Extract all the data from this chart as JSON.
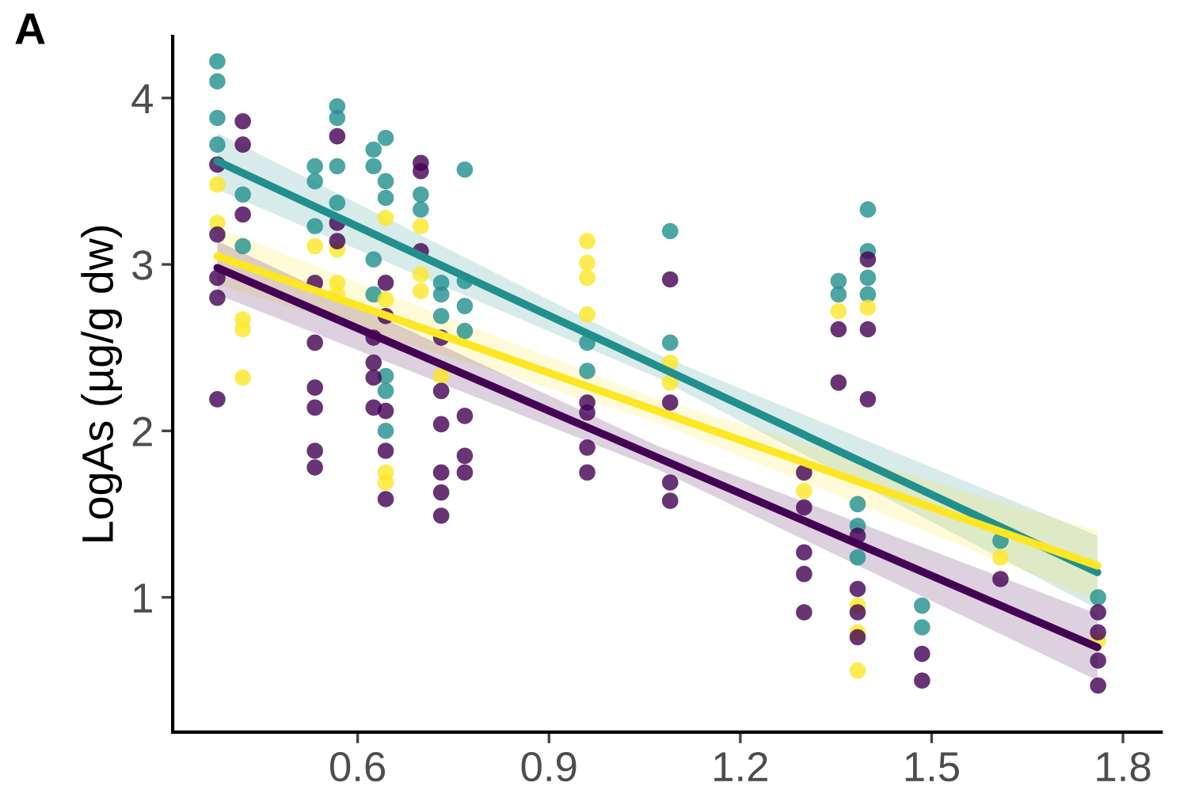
{
  "chart_data": {
    "type": "scatter",
    "ylabel": "LogAs (µg/g dw)",
    "annotations": [
      "A"
    ],
    "xlim": [
      0.31,
      1.86
    ],
    "ylim": [
      0.19,
      4.37
    ],
    "xticks": [
      0.6,
      0.9,
      1.2,
      1.5,
      1.8
    ],
    "yticks": [
      1,
      2,
      3,
      4
    ],
    "grid": false,
    "marker": "circle",
    "series": [
      {
        "color": "#21908c",
        "x": [
          0.38,
          0.38,
          0.38,
          0.38,
          0.42,
          0.42,
          0.533,
          0.533,
          0.533,
          0.568,
          0.568,
          0.568,
          0.568,
          0.625,
          0.625,
          0.625,
          0.625,
          0.644,
          0.644,
          0.644,
          0.644,
          0.644,
          0.644,
          0.699,
          0.699,
          0.731,
          0.731,
          0.731,
          0.768,
          0.768,
          0.768,
          0.768,
          0.96,
          0.96,
          1.09,
          1.09,
          1.354,
          1.354,
          1.4,
          1.4,
          1.4,
          1.4,
          1.384,
          1.384,
          1.384,
          1.485,
          1.485,
          1.608,
          1.761
        ],
        "values": [
          4.22,
          4.1,
          3.88,
          3.72,
          3.42,
          3.11,
          3.59,
          3.5,
          3.23,
          3.95,
          3.88,
          3.59,
          3.37,
          3.69,
          3.59,
          3.03,
          2.82,
          3.76,
          3.5,
          3.4,
          2.33,
          2.24,
          2.0,
          3.42,
          3.33,
          2.89,
          2.82,
          2.69,
          3.57,
          2.9,
          2.75,
          2.6,
          2.53,
          2.36,
          3.2,
          2.53,
          2.9,
          2.82,
          3.33,
          3.08,
          2.92,
          2.82,
          1.56,
          1.43,
          1.24,
          0.95,
          0.82,
          1.34,
          1.0
        ]
      },
      {
        "color": "#fde725",
        "x": [
          0.38,
          0.38,
          0.42,
          0.42,
          0.42,
          0.533,
          0.568,
          0.568,
          0.568,
          0.644,
          0.644,
          0.644,
          0.644,
          0.699,
          0.699,
          0.699,
          0.731,
          0.96,
          0.96,
          0.96,
          0.96,
          1.09,
          1.09,
          1.3,
          1.354,
          1.4,
          1.384,
          1.384,
          1.384,
          1.608,
          1.761
        ],
        "values": [
          3.48,
          3.25,
          2.67,
          2.61,
          2.32,
          3.11,
          3.09,
          2.89,
          2.82,
          3.28,
          2.79,
          1.75,
          1.69,
          3.23,
          2.94,
          2.84,
          2.33,
          3.14,
          3.01,
          2.92,
          2.7,
          2.41,
          2.29,
          1.64,
          2.72,
          2.74,
          0.95,
          0.79,
          0.56,
          1.24,
          0.74
        ]
      },
      {
        "color": "#440154",
        "x": [
          0.38,
          0.38,
          0.38,
          0.38,
          0.38,
          0.42,
          0.42,
          0.42,
          0.533,
          0.533,
          0.533,
          0.533,
          0.533,
          0.533,
          0.568,
          0.568,
          0.568,
          0.625,
          0.625,
          0.625,
          0.625,
          0.644,
          0.644,
          0.644,
          0.644,
          0.644,
          0.699,
          0.699,
          0.699,
          0.731,
          0.731,
          0.731,
          0.731,
          0.731,
          0.731,
          0.768,
          0.768,
          0.768,
          0.96,
          0.96,
          0.96,
          0.96,
          1.09,
          1.09,
          1.09,
          1.09,
          1.3,
          1.3,
          1.3,
          1.3,
          1.3,
          1.354,
          1.354,
          1.4,
          1.4,
          1.4,
          1.384,
          1.384,
          1.384,
          1.384,
          1.485,
          1.485,
          1.608,
          1.761,
          1.761,
          1.761,
          1.761
        ],
        "values": [
          3.6,
          3.18,
          2.92,
          2.8,
          2.19,
          3.86,
          3.72,
          3.3,
          2.89,
          2.53,
          2.26,
          2.14,
          1.88,
          1.78,
          3.77,
          3.25,
          3.14,
          2.56,
          2.41,
          2.32,
          2.14,
          2.89,
          2.69,
          2.12,
          1.88,
          1.59,
          3.61,
          3.56,
          3.08,
          2.56,
          2.24,
          2.04,
          1.75,
          1.63,
          1.49,
          2.09,
          1.85,
          1.75,
          2.17,
          2.11,
          1.9,
          1.75,
          2.91,
          2.17,
          1.69,
          1.58,
          1.75,
          1.54,
          1.27,
          1.14,
          0.91,
          2.61,
          2.29,
          3.03,
          2.61,
          2.19,
          1.37,
          1.05,
          0.91,
          0.76,
          0.66,
          0.5,
          1.11,
          0.91,
          0.79,
          0.62,
          0.47
        ]
      },
      {
        "type": "line",
        "marker": "none",
        "color": "#21908c",
        "x": [
          0.38,
          1.07,
          1.76
        ],
        "values": [
          3.62,
          2.39,
          1.15
        ],
        "lower": [
          3.45,
          2.32,
          0.93
        ],
        "upper": [
          3.79,
          2.46,
          1.37
        ]
      },
      {
        "type": "line",
        "marker": "none",
        "color": "#fde725",
        "x": [
          0.38,
          1.07,
          1.76
        ],
        "values": [
          3.05,
          2.12,
          1.19
        ],
        "lower": [
          2.88,
          2.05,
          0.98
        ],
        "upper": [
          3.22,
          2.19,
          1.4
        ]
      },
      {
        "type": "line",
        "marker": "none",
        "color": "#440154",
        "x": [
          0.38,
          1.07,
          1.76
        ],
        "values": [
          2.98,
          1.84,
          0.7
        ],
        "lower": [
          2.82,
          1.77,
          0.5
        ],
        "upper": [
          3.14,
          1.91,
          0.9
        ]
      }
    ]
  }
}
